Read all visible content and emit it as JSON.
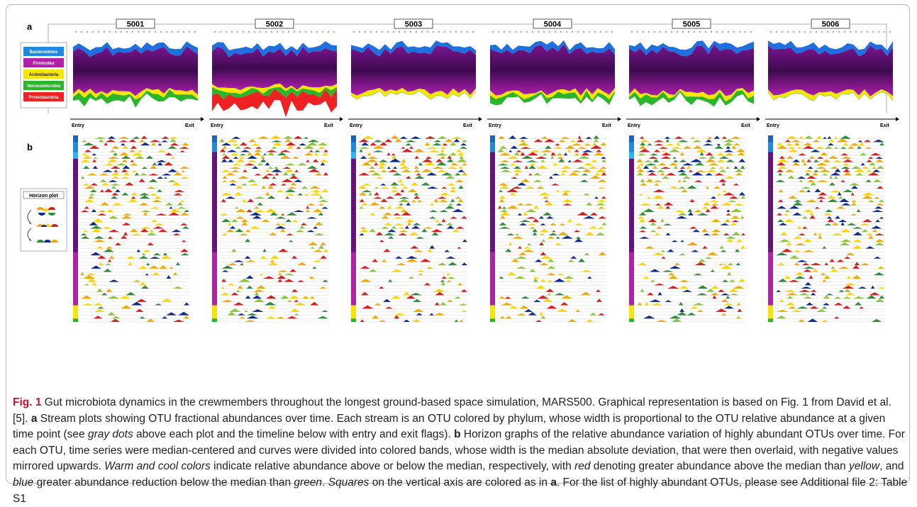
{
  "figure": {
    "panel_a_letter": "a",
    "panel_b_letter": "b",
    "subjects": [
      "5001",
      "5002",
      "5003",
      "5004",
      "5005",
      "5006"
    ],
    "timeline": {
      "entry_label": "Entry",
      "exit_label": "Exit"
    },
    "legend": [
      {
        "label": "Bacteroidetes",
        "color": "#1e88e5"
      },
      {
        "label": "Firmicutes",
        "color": "#b21fa8"
      },
      {
        "label": "Actinobacteria",
        "color": "#f7e600"
      },
      {
        "label": "Verrucomicrobia",
        "color": "#2bb52b"
      },
      {
        "label": "Proteobacteria",
        "color": "#ee2222"
      }
    ],
    "horizon_legend_title": "Horizon plot",
    "colors": {
      "high_above": "#d91c1c",
      "above": "#f2a900",
      "slightly_above": "#ffd400",
      "below": "#8cc63f",
      "more_below": "#2e8b3a",
      "strongly_below": "#0d2a8a",
      "bacteroidetes_dark": "#1565c0",
      "firmicutes_dark": "#3d0a4e"
    }
  },
  "caption": {
    "fig_label": "Fig. 1",
    "t1": " Gut microbiota dynamics in the crewmembers throughout the longest ground-based space simulation, MARS500. Graphical representation is based on Fig. 1 from David et al. [5]. ",
    "a_ref": "a",
    "t2": " Stream plots showing OTU fractional abundances over time. Each stream is an OTU colored by phylum, whose width is proportional to the OTU relative abundance at a given time point (see ",
    "gray_dots": "gray dots",
    "t3": " above each plot and the timeline below with entry and exit flags). ",
    "b_ref": "b",
    "t4": " Horizon graphs of the relative abundance variation of highly abundant OTUs over time. For each OTU, time series were median-centered and curves were divided into colored bands, whose width is the median absolute deviation, that were then overlaid, with negative values mirrored upwards. ",
    "warm_cool": "Warm and cool colors",
    "t5": " indicate relative abundance above or below the median, respectively, with ",
    "red": "red",
    "t6": " denoting greater abundance above the median than ",
    "yellow": "yellow",
    "t7": ", and ",
    "blue": "blue",
    "t8": " greater abundance reduction below the median than ",
    "green": "green",
    "t9": ". ",
    "squares": "Squares",
    "t10": " on the vertical axis are colored as in ",
    "a_ref2": "a",
    "t11": ". For the list of highly abundant OTUs, please see Additional file 2: Table S1"
  }
}
